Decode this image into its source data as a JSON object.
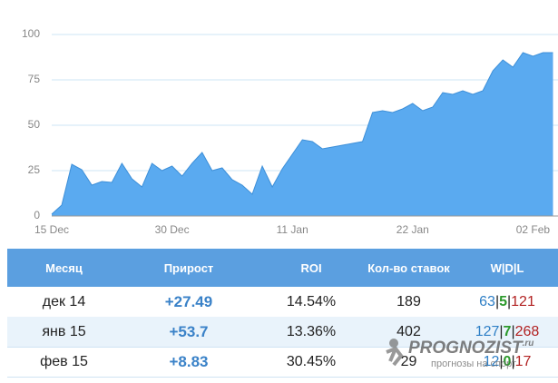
{
  "chart_data": {
    "type": "area",
    "categories": [
      "15 Dec",
      null,
      null,
      null,
      null,
      null,
      null,
      null,
      null,
      null,
      null,
      null,
      "30 Dec",
      null,
      null,
      null,
      null,
      null,
      null,
      null,
      null,
      null,
      null,
      null,
      "11 Jan",
      null,
      null,
      null,
      null,
      null,
      null,
      null,
      null,
      null,
      null,
      null,
      "22 Jan",
      null,
      null,
      null,
      null,
      null,
      null,
      null,
      null,
      null,
      null,
      null,
      "02 Feb",
      null,
      null
    ],
    "values": [
      1,
      6,
      28.5,
      25.5,
      17,
      19,
      18.5,
      29,
      20.5,
      16,
      29,
      25,
      27.5,
      22,
      29,
      35,
      25,
      26.5,
      20,
      17,
      12,
      27.5,
      16,
      26,
      34,
      42,
      41,
      37,
      38,
      39,
      40,
      41,
      57,
      58,
      57,
      59,
      62,
      58,
      60,
      68,
      67,
      69,
      67,
      69,
      80,
      86,
      82,
      90,
      88,
      90,
      90
    ],
    "color": "#5aaaf0",
    "line_color": "#3d8fd8",
    "ylim": [
      0,
      100
    ],
    "yticks": [
      0,
      25,
      50,
      75,
      100
    ],
    "grid": true
  },
  "table": {
    "header": [
      "Месяц",
      "Прирост",
      "ROI",
      "Кол-во ставок",
      "W|D|L"
    ],
    "separator": "|",
    "rows": [
      {
        "month": "дек 14",
        "growth": "+27.49",
        "roi": "14.54%",
        "bets": "189",
        "w": "63",
        "d": "5",
        "l": "121"
      },
      {
        "month": "янв 15",
        "growth": "+53.7",
        "roi": "13.36%",
        "bets": "402",
        "w": "127",
        "d": "7",
        "l": "268"
      },
      {
        "month": "фев 15",
        "growth": "+8.83",
        "roi": "30.45%",
        "bets": "29",
        "w": "12",
        "d": "0",
        "l": "17"
      }
    ]
  },
  "watermark": {
    "brand": "PROGNOZIST",
    "tld": ".ru",
    "tagline": "прогнозы на спорт"
  }
}
